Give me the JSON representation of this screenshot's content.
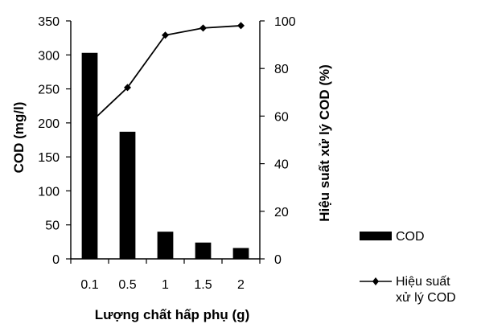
{
  "chart_data": {
    "type": "bar+line",
    "categories": [
      "0.1",
      "0.5",
      "1",
      "1.5",
      "2"
    ],
    "series": [
      {
        "name": "COD",
        "type": "bar",
        "axis": "left",
        "values": [
          303,
          187,
          40,
          24,
          16
        ]
      },
      {
        "name": "Hiệu suất xử lý COD",
        "type": "line",
        "axis": "right",
        "marker": "diamond",
        "values": [
          57,
          72,
          94,
          97,
          98
        ]
      }
    ],
    "xlabel": "Lượng chất hấp phụ (g)",
    "ylabel_left": "COD (mg/l)",
    "ylabel_right": "Hiệu suất xử lý COD (%)",
    "ylim_left": [
      0,
      350
    ],
    "ylim_right": [
      0,
      100
    ],
    "yticks_left": [
      "0",
      "50",
      "100",
      "150",
      "200",
      "250",
      "300",
      "350"
    ],
    "yticks_right": [
      "0",
      "20",
      "40",
      "60",
      "80",
      "100"
    ],
    "grid": false,
    "legend": {
      "placement": "right-bottom",
      "entries": [
        {
          "label": "COD",
          "symbol": "bar"
        },
        {
          "label_lines": [
            "Hiệu suất",
            "xử lý COD"
          ],
          "symbol": "line-diamond"
        }
      ]
    },
    "colors": {
      "bar": "#000000",
      "line": "#000000"
    }
  }
}
